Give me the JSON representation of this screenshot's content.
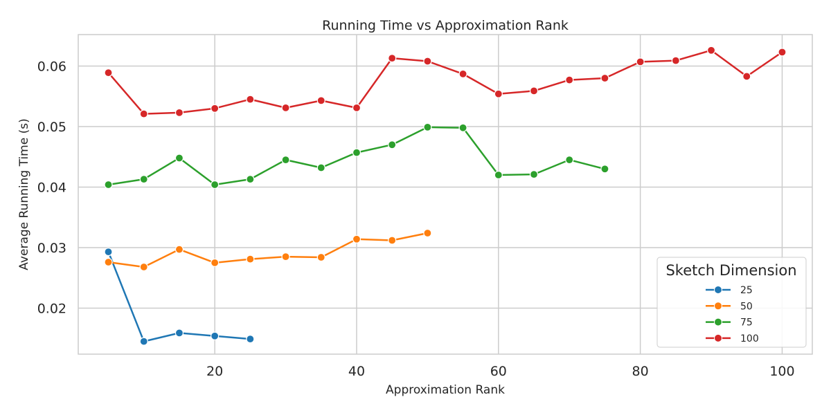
{
  "chart_data": {
    "type": "line",
    "title": "Running Time vs Approximation Rank",
    "xlabel": "Approximation Rank",
    "ylabel": "Average Running Time (s)",
    "xlim": [
      0.75,
      104.25
    ],
    "ylim": [
      0.0124,
      0.0652
    ],
    "xticks": [
      20,
      40,
      60,
      80,
      100
    ],
    "yticks": [
      0.02,
      0.03,
      0.04,
      0.05,
      0.06
    ],
    "xtick_labels": [
      "20",
      "40",
      "60",
      "80",
      "100"
    ],
    "ytick_labels": [
      "0.02",
      "0.03",
      "0.04",
      "0.05",
      "0.06"
    ],
    "grid": true,
    "legend": {
      "title": "Sketch Dimension",
      "position": "lower-right"
    },
    "series": [
      {
        "name": "25",
        "color": "#1f77b4",
        "x": [
          5,
          10,
          15,
          20,
          25
        ],
        "y": [
          0.0293,
          0.0145,
          0.0159,
          0.0154,
          0.0149
        ]
      },
      {
        "name": "50",
        "color": "#ff7f0e",
        "x": [
          5,
          10,
          15,
          20,
          25,
          30,
          35,
          40,
          45,
          50
        ],
        "y": [
          0.0276,
          0.0268,
          0.0297,
          0.0275,
          0.0281,
          0.0285,
          0.0284,
          0.0314,
          0.0312,
          0.0324
        ]
      },
      {
        "name": "75",
        "color": "#2ca02c",
        "x": [
          5,
          10,
          15,
          20,
          25,
          30,
          35,
          40,
          45,
          50,
          55,
          60,
          65,
          70,
          75
        ],
        "y": [
          0.0404,
          0.0413,
          0.0448,
          0.0404,
          0.0413,
          0.0445,
          0.0432,
          0.0457,
          0.047,
          0.0499,
          0.0498,
          0.042,
          0.0421,
          0.0445,
          0.043
        ]
      },
      {
        "name": "100",
        "color": "#d62728",
        "x": [
          5,
          10,
          15,
          20,
          25,
          30,
          35,
          40,
          45,
          50,
          55,
          60,
          65,
          70,
          75,
          80,
          85,
          90,
          95,
          100
        ],
        "y": [
          0.0589,
          0.0521,
          0.0523,
          0.053,
          0.0545,
          0.0531,
          0.0543,
          0.0531,
          0.0613,
          0.0608,
          0.0587,
          0.0554,
          0.0559,
          0.0577,
          0.058,
          0.0607,
          0.0609,
          0.0626,
          0.0583,
          0.0623
        ]
      }
    ]
  }
}
